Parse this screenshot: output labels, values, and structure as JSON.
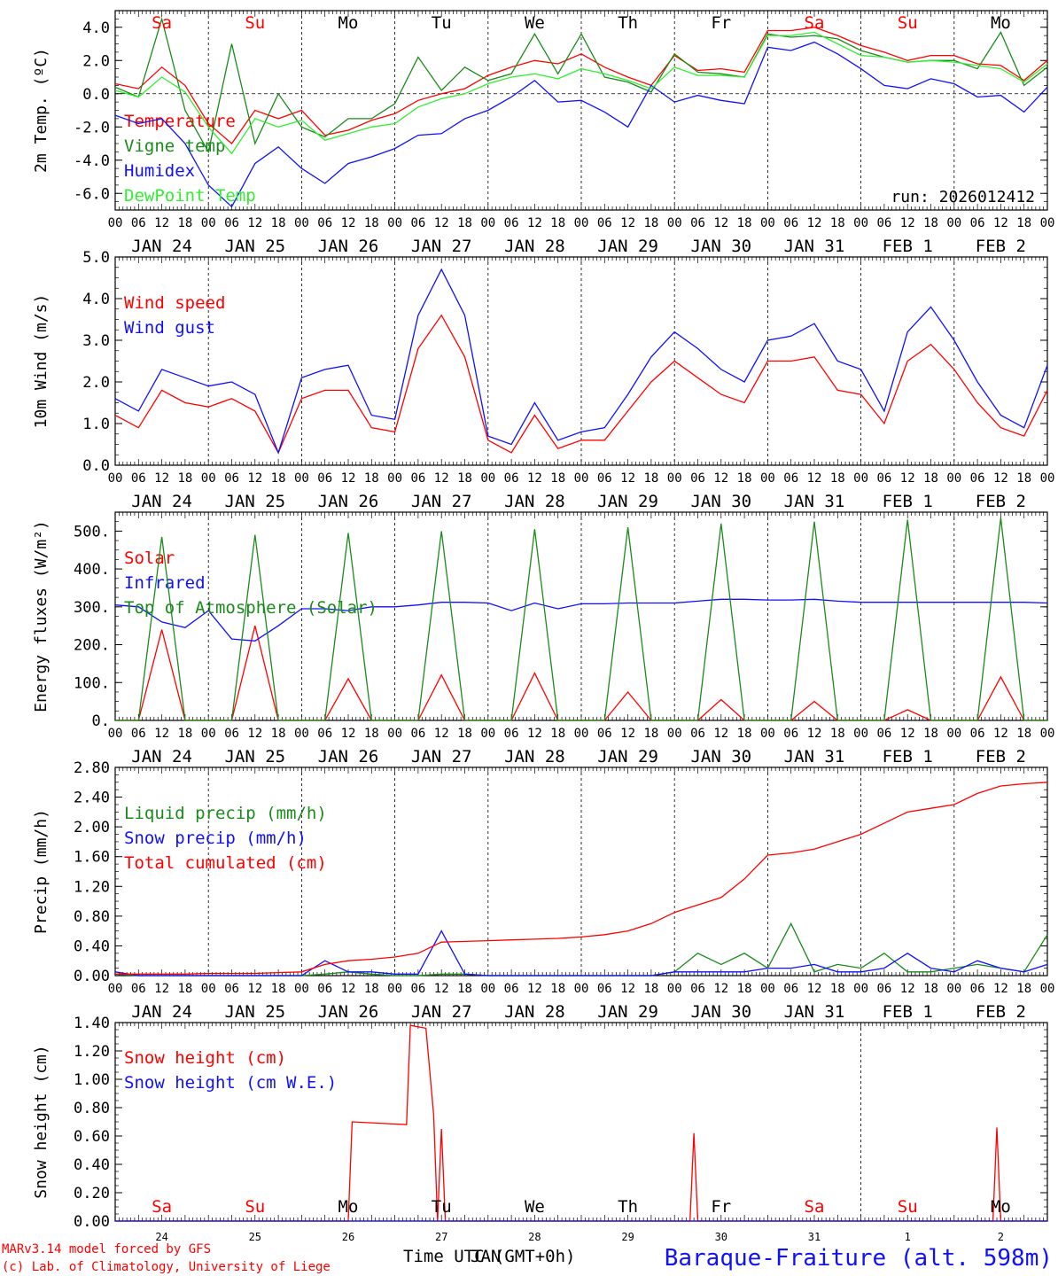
{
  "colors": {
    "red": "#ff0000",
    "green": "#1a8a1a",
    "blue": "#1010ff",
    "lightgreen": "#33ee33",
    "black": "#000000"
  },
  "days": {
    "dates": [
      "JAN 24",
      "JAN 25",
      "JAN 26",
      "JAN 27",
      "JAN 28",
      "JAN 29",
      "JAN 30",
      "JAN 31",
      "FEB  1",
      "FEB  2"
    ],
    "weekdays": [
      "Sa",
      "Su",
      "Mo",
      "Tu",
      "We",
      "Th",
      "Fr",
      "Sa",
      "Su",
      "Mo"
    ],
    "weekend": [
      true,
      true,
      false,
      false,
      false,
      false,
      false,
      true,
      true,
      false
    ],
    "hour_ticks": [
      "00",
      "06",
      "12",
      "18"
    ],
    "end_tick": "00",
    "bottom_days": [
      "24",
      "25",
      "26",
      "27",
      "28",
      "29",
      "30",
      "31",
      "1",
      "2"
    ]
  },
  "footer": {
    "model": "MARv3.14 model forced by GFS",
    "lab": "(c) Lab. of Climatology, University of Liege",
    "time_label": "Time UTC (GMT+0h)",
    "overlap_label": "JAN",
    "station": "Baraque-Fraiture (alt. 598m)"
  },
  "chart_data": [
    {
      "type": "line",
      "ylabel": "2m Temp. (ºC)",
      "ylim": [
        -7.0,
        5.0
      ],
      "yticks": [
        -6.0,
        -4.0,
        -2.0,
        0.0,
        2.0,
        4.0
      ],
      "ytick_labels": [
        "-6.0",
        "-4.0",
        "-2.0",
        "0.0",
        "2.0",
        "4.0"
      ],
      "zero_line": true,
      "run_label": "run: 2026012412",
      "x_hours": [
        0,
        6,
        12,
        18,
        24,
        30,
        36,
        42,
        48,
        54,
        60,
        66,
        72,
        78,
        84,
        90,
        96,
        102,
        108,
        114,
        120,
        126,
        132,
        138,
        144,
        150,
        156,
        162,
        168,
        174,
        180,
        186,
        192,
        198,
        204,
        210,
        216,
        222,
        228,
        234,
        240
      ],
      "series": [
        {
          "name": "Temperature",
          "color": "#ff0000",
          "values": [
            0.6,
            0.3,
            1.6,
            0.5,
            -1.8,
            -3.0,
            -1.0,
            -1.5,
            -1.0,
            -2.5,
            -2.2,
            -1.6,
            -1.2,
            -0.4,
            0.0,
            0.3,
            1.1,
            1.6,
            2.0,
            1.8,
            2.4,
            1.6,
            1.0,
            0.5,
            2.3,
            1.4,
            1.5,
            1.3,
            3.8,
            3.8,
            4.0,
            3.5,
            2.9,
            2.5,
            2.0,
            2.3,
            2.3,
            1.8,
            1.7,
            0.8,
            2.0
          ]
        },
        {
          "name": "Vigne temp",
          "color": "#1a8a1a",
          "values": [
            0.4,
            -0.2,
            4.5,
            -1.0,
            -3.5,
            3.0,
            -3.0,
            0.0,
            -2.0,
            -2.6,
            -1.5,
            -1.5,
            -0.6,
            2.2,
            0.2,
            1.6,
            0.8,
            1.2,
            3.6,
            1.2,
            3.6,
            1.0,
            0.7,
            0.1,
            2.4,
            1.3,
            1.2,
            1.0,
            3.6,
            3.4,
            3.5,
            3.3,
            2.6,
            2.2,
            1.9,
            2.0,
            2.0,
            1.5,
            3.7,
            0.5,
            1.6
          ]
        },
        {
          "name": "Humidex",
          "color": "#1010ff",
          "values": [
            -1.3,
            -1.8,
            -1.5,
            -3.0,
            -5.5,
            -6.8,
            -4.2,
            -3.2,
            -4.5,
            -5.4,
            -4.2,
            -3.8,
            -3.3,
            -2.5,
            -2.4,
            -1.5,
            -1.0,
            -0.2,
            0.8,
            -0.5,
            -0.4,
            -1.1,
            -2.0,
            0.5,
            -0.5,
            -0.1,
            -0.4,
            -0.6,
            2.8,
            2.6,
            3.1,
            2.4,
            1.5,
            0.5,
            0.3,
            0.9,
            0.6,
            -0.2,
            -0.1,
            -1.1,
            0.4
          ]
        },
        {
          "name": "DewPoint Temp",
          "color": "#33ee33",
          "values": [
            0.2,
            -0.2,
            1.0,
            0.1,
            -2.0,
            -3.6,
            -1.5,
            -2.0,
            -1.6,
            -2.8,
            -2.4,
            -2.0,
            -1.8,
            -0.8,
            -0.3,
            0.0,
            0.6,
            1.0,
            1.2,
            0.9,
            1.5,
            1.2,
            0.8,
            0.3,
            1.6,
            1.1,
            1.1,
            1.0,
            3.5,
            3.5,
            3.7,
            3.0,
            2.3,
            2.2,
            1.9,
            2.0,
            1.9,
            1.7,
            1.5,
            0.7,
            1.8
          ]
        }
      ]
    },
    {
      "type": "line",
      "ylabel": "10m Wind (m/s)",
      "ylim": [
        0.0,
        5.0
      ],
      "yticks": [
        0.0,
        1.0,
        2.0,
        3.0,
        4.0,
        5.0
      ],
      "ytick_labels": [
        "0.0",
        "1.0",
        "2.0",
        "3.0",
        "4.0",
        "5.0"
      ],
      "x_hours": [
        0,
        6,
        12,
        18,
        24,
        30,
        36,
        42,
        48,
        54,
        60,
        66,
        72,
        78,
        84,
        90,
        96,
        102,
        108,
        114,
        120,
        126,
        132,
        138,
        144,
        150,
        156,
        162,
        168,
        174,
        180,
        186,
        192,
        198,
        204,
        210,
        216,
        222,
        228,
        234,
        240
      ],
      "series": [
        {
          "name": "Wind speed",
          "color": "#ff0000",
          "values": [
            1.2,
            0.9,
            1.8,
            1.5,
            1.4,
            1.6,
            1.3,
            0.3,
            1.6,
            1.8,
            1.8,
            0.9,
            0.8,
            2.8,
            3.6,
            2.6,
            0.6,
            0.3,
            1.2,
            0.4,
            0.6,
            0.6,
            1.3,
            2.0,
            2.5,
            2.1,
            1.7,
            1.5,
            2.5,
            2.5,
            2.6,
            1.8,
            1.7,
            1.0,
            2.5,
            2.9,
            2.3,
            1.5,
            0.9,
            0.7,
            1.8
          ]
        },
        {
          "name": "Wind gust",
          "color": "#1010ff",
          "values": [
            1.6,
            1.3,
            2.3,
            2.1,
            1.9,
            2.0,
            1.7,
            0.3,
            2.1,
            2.3,
            2.4,
            1.2,
            1.1,
            3.6,
            4.7,
            3.6,
            0.7,
            0.5,
            1.5,
            0.6,
            0.8,
            0.9,
            1.7,
            2.6,
            3.2,
            2.8,
            2.3,
            2.0,
            3.0,
            3.1,
            3.4,
            2.5,
            2.3,
            1.3,
            3.2,
            3.8,
            3.0,
            2.0,
            1.2,
            0.9,
            2.4
          ]
        }
      ]
    },
    {
      "type": "line",
      "ylabel": "Energy fluxes (W/m²)",
      "ylim": [
        0,
        550
      ],
      "yticks": [
        0,
        100,
        200,
        300,
        400,
        500
      ],
      "ytick_labels": [
        "0.",
        "100.",
        "200.",
        "300.",
        "400.",
        "500."
      ],
      "x_hours": [
        0,
        6,
        12,
        18,
        24,
        30,
        36,
        42,
        48,
        54,
        60,
        66,
        72,
        78,
        84,
        90,
        96,
        102,
        108,
        114,
        120,
        126,
        132,
        138,
        144,
        150,
        156,
        162,
        168,
        174,
        180,
        186,
        192,
        198,
        204,
        210,
        216,
        222,
        228,
        234,
        240
      ],
      "series": [
        {
          "name": "Solar",
          "color": "#ff0000",
          "values": [
            0,
            0,
            240,
            0,
            0,
            0,
            250,
            0,
            0,
            0,
            110,
            0,
            0,
            0,
            120,
            0,
            0,
            0,
            125,
            0,
            0,
            0,
            75,
            0,
            0,
            0,
            55,
            0,
            0,
            0,
            50,
            0,
            0,
            0,
            28,
            0,
            0,
            0,
            115,
            0,
            0
          ]
        },
        {
          "name": "Infrared",
          "color": "#1010ff",
          "values": [
            305,
            300,
            260,
            245,
            290,
            215,
            210,
            250,
            295,
            295,
            290,
            300,
            300,
            305,
            312,
            312,
            310,
            290,
            310,
            295,
            308,
            308,
            310,
            310,
            310,
            315,
            320,
            320,
            318,
            318,
            320,
            315,
            312,
            312,
            312,
            312,
            312,
            312,
            312,
            312,
            310
          ]
        },
        {
          "name": "Top of Atmosphere (Solar)",
          "color": "#1a8a1a",
          "values": [
            0,
            0,
            485,
            0,
            0,
            0,
            490,
            0,
            0,
            0,
            495,
            0,
            0,
            0,
            500,
            0,
            0,
            0,
            505,
            0,
            0,
            0,
            510,
            0,
            0,
            0,
            520,
            0,
            0,
            0,
            525,
            0,
            0,
            0,
            530,
            0,
            0,
            0,
            535,
            0,
            0
          ]
        }
      ]
    },
    {
      "type": "line",
      "ylabel": "Precip (mm/h)",
      "ylim": [
        0.0,
        2.8
      ],
      "yticks": [
        0.0,
        0.4,
        0.8,
        1.2,
        1.6,
        2.0,
        2.4,
        2.8
      ],
      "ytick_labels": [
        "0.00",
        "0.40",
        "0.80",
        "1.20",
        "1.60",
        "2.00",
        "2.40",
        "2.80"
      ],
      "x_hours": [
        0,
        6,
        12,
        18,
        24,
        30,
        36,
        42,
        48,
        54,
        60,
        66,
        72,
        78,
        84,
        90,
        96,
        102,
        108,
        114,
        120,
        126,
        132,
        138,
        144,
        150,
        156,
        162,
        168,
        174,
        180,
        186,
        192,
        198,
        204,
        210,
        216,
        222,
        228,
        234,
        240
      ],
      "series": [
        {
          "name": "Liquid precip (mm/h)",
          "color": "#1a8a1a",
          "values": [
            0.02,
            0.0,
            0.0,
            0.0,
            0.0,
            0.0,
            0.0,
            0.0,
            0.0,
            0.02,
            0.05,
            0.02,
            0.0,
            0.0,
            0.02,
            0.02,
            0.0,
            0.0,
            0.0,
            0.0,
            0.0,
            0.0,
            0.0,
            0.0,
            0.05,
            0.3,
            0.15,
            0.3,
            0.1,
            0.7,
            0.05,
            0.15,
            0.1,
            0.3,
            0.05,
            0.05,
            0.1,
            0.15,
            0.1,
            0.05,
            0.55
          ]
        },
        {
          "name": "Snow precip (mm/h)",
          "color": "#1010ff",
          "values": [
            0.05,
            0.0,
            0.0,
            0.0,
            0.0,
            0.0,
            0.0,
            0.0,
            0.0,
            0.2,
            0.05,
            0.05,
            0.02,
            0.02,
            0.6,
            0.02,
            0.0,
            0.0,
            0.0,
            0.0,
            0.0,
            0.0,
            0.0,
            0.0,
            0.05,
            0.05,
            0.05,
            0.05,
            0.1,
            0.1,
            0.15,
            0.05,
            0.05,
            0.1,
            0.3,
            0.1,
            0.05,
            0.2,
            0.1,
            0.05,
            0.15
          ]
        },
        {
          "name": "Total cumulated (cm)",
          "color": "#ff0000",
          "values": [
            0.02,
            0.02,
            0.02,
            0.02,
            0.03,
            0.03,
            0.03,
            0.04,
            0.05,
            0.15,
            0.2,
            0.22,
            0.25,
            0.3,
            0.45,
            0.46,
            0.47,
            0.48,
            0.49,
            0.5,
            0.52,
            0.55,
            0.6,
            0.7,
            0.85,
            0.95,
            1.05,
            1.3,
            1.62,
            1.65,
            1.7,
            1.8,
            1.9,
            2.05,
            2.2,
            2.25,
            2.3,
            2.45,
            2.55,
            2.58,
            2.6
          ]
        }
      ]
    },
    {
      "type": "line",
      "ylabel": "Snow height (cm)",
      "ylim": [
        0.0,
        1.4
      ],
      "yticks": [
        0.0,
        0.2,
        0.4,
        0.6,
        0.8,
        1.0,
        1.2,
        1.4
      ],
      "ytick_labels": [
        "0.00",
        "0.20",
        "0.40",
        "0.60",
        "0.80",
        "1.00",
        "1.20",
        "1.40"
      ],
      "series": [
        {
          "name": "Snow height (cm)",
          "color": "#ff0000",
          "x": [
            0,
            60,
            61,
            75,
            76,
            80,
            82,
            83,
            84,
            85,
            86,
            87,
            148,
            149,
            150,
            226,
            227,
            228,
            240
          ],
          "values": [
            0,
            0,
            0.7,
            0.68,
            1.38,
            1.36,
            0.75,
            0.0,
            0.65,
            0.0,
            0.0,
            0.0,
            0.0,
            0.62,
            0.0,
            0.0,
            0.66,
            0.0,
            0.0
          ]
        },
        {
          "name": "Snow height (cm W.E.)",
          "color": "#1010ff",
          "x": [
            0,
            240
          ],
          "values": [
            0,
            0
          ]
        }
      ]
    }
  ]
}
